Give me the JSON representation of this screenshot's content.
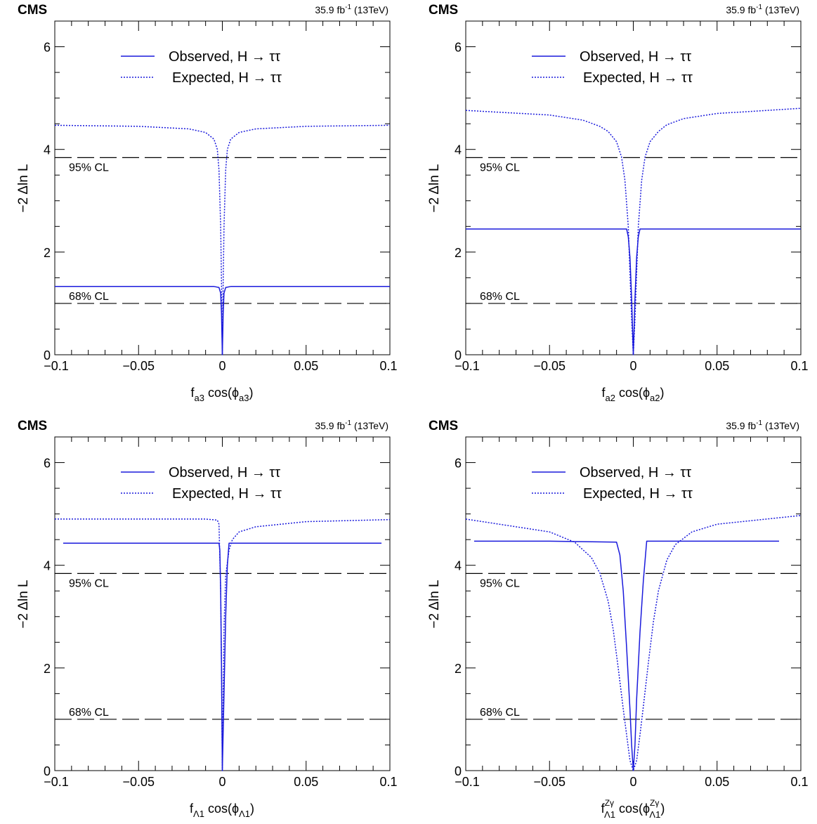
{
  "figure": {
    "common": {
      "experiment": "CMS",
      "lumi_value": "35.9 fb",
      "lumi_exp": "-1",
      "lumi_energy": " (13TeV)",
      "ylabel": "−2 Δln L",
      "legend_observed": "Observed, H → ττ",
      "legend_expected": "Expected, H → ττ",
      "cl95_label": "95% CL",
      "cl68_label": "68% CL",
      "x_ticks": [
        "−0.1",
        "−0.05",
        "0",
        "0.05",
        "0.1"
      ],
      "y_ticks": [
        "0",
        "2",
        "4",
        "6"
      ],
      "colors": {
        "observed": "#1a1adc",
        "expected": "#1a1adc",
        "cl_lines": "#000000"
      }
    },
    "panels": [
      {
        "xlabel_main": "f",
        "xlabel_sub": "a3",
        "xlabel_mid": " cos(ϕ",
        "xlabel_sub2": "a3",
        "xlabel_sup": "",
        "xlabel_sup2": "",
        "xlabel_end": ")"
      },
      {
        "xlabel_main": "f",
        "xlabel_sub": "a2",
        "xlabel_mid": " cos(ϕ",
        "xlabel_sub2": "a2",
        "xlabel_sup": "",
        "xlabel_sup2": "",
        "xlabel_end": ")"
      },
      {
        "xlabel_main": "f",
        "xlabel_sub": "Λ1",
        "xlabel_mid": " cos(ϕ",
        "xlabel_sub2": "Λ1",
        "xlabel_sup": "",
        "xlabel_sup2": "",
        "xlabel_end": ")"
      },
      {
        "xlabel_main": "f",
        "xlabel_sub": "Λ1",
        "xlabel_mid": " cos(ϕ",
        "xlabel_sub2": "Λ1",
        "xlabel_sup": "Zγ",
        "xlabel_sup2": "Zγ",
        "xlabel_end": ")"
      }
    ]
  },
  "chart_data": [
    {
      "type": "line",
      "xlabel": "f_a3 cos(ϕ_a3)",
      "ylabel": "−2 Δln L",
      "xlim": [
        -0.1,
        0.1
      ],
      "ylim": [
        0,
        6.5
      ],
      "reference_lines": [
        {
          "y": 3.84,
          "label": "95% CL"
        },
        {
          "y": 1.0,
          "label": "68% CL"
        }
      ],
      "series": [
        {
          "name": "Observed, H → ττ",
          "style": "solid",
          "x": [
            -0.1,
            -0.05,
            -0.005,
            -0.002,
            -0.001,
            -0.0005,
            0,
            0.0005,
            0.001,
            0.002,
            0.005,
            0.05,
            0.1
          ],
          "y": [
            1.33,
            1.33,
            1.33,
            1.31,
            1.2,
            0.8,
            0,
            0.8,
            1.2,
            1.31,
            1.33,
            1.33,
            1.33
          ]
        },
        {
          "name": "Expected, H → ττ",
          "style": "dotted",
          "x": [
            -0.1,
            -0.05,
            -0.02,
            -0.01,
            -0.005,
            -0.003,
            -0.002,
            -0.001,
            -0.0005,
            0,
            0.0005,
            0.001,
            0.002,
            0.003,
            0.005,
            0.01,
            0.02,
            0.05,
            0.1
          ],
          "y": [
            4.47,
            4.45,
            4.4,
            4.33,
            4.2,
            4.0,
            3.6,
            2.5,
            1.4,
            0,
            1.4,
            2.5,
            3.6,
            4.0,
            4.2,
            4.33,
            4.4,
            4.45,
            4.47
          ]
        }
      ]
    },
    {
      "type": "line",
      "xlabel": "f_a2 cos(ϕ_a2)",
      "ylabel": "−2 Δln L",
      "xlim": [
        -0.1,
        0.1
      ],
      "ylim": [
        0,
        6.5
      ],
      "reference_lines": [
        {
          "y": 3.84,
          "label": "95% CL"
        },
        {
          "y": 1.0,
          "label": "68% CL"
        }
      ],
      "series": [
        {
          "name": "Observed, H → ττ",
          "style": "solid",
          "x": [
            -0.1,
            -0.05,
            -0.004,
            -0.003,
            -0.002,
            -0.001,
            0,
            0.001,
            0.002,
            0.003,
            0.004,
            0.05,
            0.1
          ],
          "y": [
            2.45,
            2.45,
            2.45,
            2.3,
            1.9,
            1.1,
            0,
            1.1,
            1.9,
            2.3,
            2.45,
            2.45,
            2.45
          ]
        },
        {
          "name": "Expected, H → ττ",
          "style": "dotted",
          "x": [
            -0.1,
            -0.05,
            -0.03,
            -0.02,
            -0.015,
            -0.01,
            -0.007,
            -0.005,
            -0.003,
            -0.002,
            -0.001,
            0,
            0.001,
            0.002,
            0.003,
            0.005,
            0.007,
            0.01,
            0.015,
            0.02,
            0.03,
            0.05,
            0.1
          ],
          "y": [
            4.76,
            4.67,
            4.57,
            4.45,
            4.35,
            4.15,
            3.85,
            3.4,
            2.5,
            1.6,
            0.7,
            0,
            0.7,
            1.6,
            2.5,
            3.4,
            3.85,
            4.15,
            4.35,
            4.48,
            4.6,
            4.7,
            4.8
          ]
        }
      ]
    },
    {
      "type": "line",
      "xlabel": "f_Λ1 cos(ϕ_Λ1)",
      "ylabel": "−2 Δln L",
      "xlim": [
        -0.1,
        0.1
      ],
      "ylim": [
        0,
        6.5
      ],
      "reference_lines": [
        {
          "y": 3.84,
          "label": "95% CL"
        },
        {
          "y": 1.0,
          "label": "68% CL"
        }
      ],
      "series": [
        {
          "name": "Observed, H → ττ",
          "style": "solid",
          "x": [
            -0.095,
            -0.05,
            -0.002,
            -0.0015,
            -0.001,
            -0.0005,
            0,
            0.001,
            0.002,
            0.003,
            0.004,
            0.05,
            0.095
          ],
          "y": [
            4.43,
            4.43,
            4.43,
            4.3,
            3.5,
            2.0,
            0,
            1.5,
            3.0,
            4.0,
            4.43,
            4.43,
            4.43
          ]
        },
        {
          "name": "Expected, H → ττ",
          "style": "dotted",
          "x": [
            -0.1,
            -0.05,
            -0.01,
            -0.003,
            -0.002,
            -0.001,
            -0.0005,
            0,
            0.0005,
            0.001,
            0.002,
            0.004,
            0.006,
            0.01,
            0.02,
            0.05,
            0.1
          ],
          "y": [
            4.9,
            4.9,
            4.9,
            4.88,
            4.8,
            3.5,
            2.0,
            0,
            1.5,
            2.8,
            3.8,
            4.3,
            4.5,
            4.65,
            4.75,
            4.85,
            4.89
          ]
        }
      ]
    },
    {
      "type": "line",
      "xlabel": "f_Λ1^Zγ cos(ϕ_Λ1^Zγ)",
      "ylabel": "−2 Δln L",
      "xlim": [
        -0.1,
        0.1
      ],
      "ylim": [
        0,
        6.5
      ],
      "reference_lines": [
        {
          "y": 3.84,
          "label": "95% CL"
        },
        {
          "y": 1.0,
          "label": "68% CL"
        }
      ],
      "series": [
        {
          "name": "Observed, H → ττ",
          "style": "solid",
          "x": [
            -0.095,
            -0.05,
            -0.01,
            -0.008,
            -0.006,
            -0.004,
            -0.002,
            -0.001,
            0,
            0.001,
            0.002,
            0.004,
            0.006,
            0.008,
            0.05,
            0.087
          ],
          "y": [
            4.47,
            4.47,
            4.45,
            4.2,
            3.5,
            2.4,
            1.2,
            0.5,
            0,
            0.5,
            1.4,
            2.7,
            3.7,
            4.47,
            4.47,
            4.47
          ]
        },
        {
          "name": "Expected, H → ττ",
          "style": "dotted",
          "x": [
            -0.1,
            -0.05,
            -0.035,
            -0.025,
            -0.02,
            -0.015,
            -0.012,
            -0.009,
            -0.006,
            -0.004,
            -0.002,
            0,
            0.002,
            0.004,
            0.006,
            0.009,
            0.012,
            0.015,
            0.02,
            0.025,
            0.035,
            0.05,
            0.1
          ],
          "y": [
            4.9,
            4.65,
            4.45,
            4.15,
            3.85,
            3.3,
            2.75,
            2.0,
            1.2,
            0.7,
            0.2,
            0,
            0.2,
            0.7,
            1.25,
            2.1,
            2.9,
            3.5,
            4.1,
            4.4,
            4.65,
            4.8,
            4.97
          ]
        }
      ]
    }
  ]
}
